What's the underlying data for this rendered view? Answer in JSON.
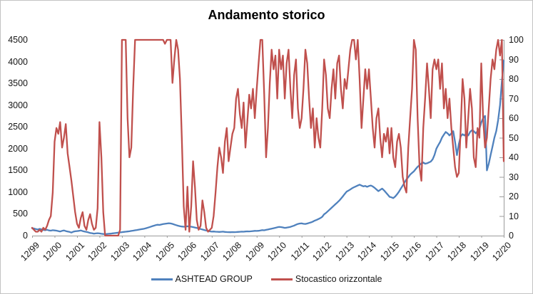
{
  "chart_data": {
    "type": "line",
    "title": "Andamento storico",
    "grid": false,
    "points_per_year": 12,
    "x_tick_labels": [
      "12/99",
      "12/00",
      "12/01",
      "12/02",
      "12/03",
      "12/04",
      "12/05",
      "12/06",
      "12/07",
      "12/08",
      "12/09",
      "12/10",
      "12/11",
      "12/12",
      "12/13",
      "12/14",
      "12/15",
      "12/16",
      "12/17",
      "12/18",
      "12/19",
      "12/20"
    ],
    "left_axis": {
      "min": 0,
      "max": 4500,
      "step": 500
    },
    "right_axis": {
      "min": 0,
      "max": 100,
      "step": 10
    },
    "legend": {
      "position": "bottom"
    },
    "series": [
      {
        "name": "ASHTEAD GROUP",
        "axis": "left",
        "color": "#4F81BD",
        "values": [
          170,
          165,
          150,
          140,
          155,
          145,
          130,
          125,
          135,
          120,
          115,
          125,
          120,
          115,
          105,
          95,
          110,
          120,
          105,
          95,
          85,
          70,
          90,
          100,
          105,
          110,
          120,
          105,
          95,
          85,
          75,
          60,
          55,
          45,
          50,
          55,
          50,
          42,
          38,
          35,
          38,
          42,
          46,
          52,
          58,
          62,
          68,
          74,
          80,
          85,
          90,
          95,
          100,
          108,
          115,
          122,
          130,
          138,
          145,
          152,
          160,
          172,
          185,
          200,
          215,
          228,
          240,
          250,
          245,
          255,
          265,
          272,
          278,
          285,
          280,
          270,
          255,
          240,
          228,
          218,
          210,
          205,
          208,
          214,
          210,
          205,
          196,
          186,
          176,
          165,
          152,
          140,
          130,
          118,
          108,
          98,
          92,
          95,
          90,
          88,
          85,
          88,
          92,
          85,
          82,
          80,
          78,
          82,
          80,
          82,
          85,
          88,
          92,
          90,
          95,
          98,
          96,
          100,
          105,
          110,
          108,
          112,
          118,
          126,
          122,
          132,
          140,
          150,
          160,
          170,
          180,
          192,
          200,
          196,
          188,
          178,
          184,
          192,
          202,
          216,
          230,
          250,
          268,
          278,
          282,
          272,
          268,
          278,
          292,
          305,
          322,
          345,
          362,
          382,
          402,
          432,
          490,
          520,
          560,
          600,
          640,
          680,
          720,
          760,
          800,
          850,
          900,
          955,
          1010,
          1035,
          1060,
          1090,
          1112,
          1132,
          1152,
          1172,
          1150,
          1132,
          1142,
          1122,
          1140,
          1152,
          1130,
          1100,
          1062,
          1022,
          1052,
          1082,
          1042,
          992,
          942,
          892,
          880,
          862,
          900,
          950,
          1010,
          1080,
          1150,
          1222,
          1292,
          1342,
          1402,
          1442,
          1480,
          1532,
          1582,
          1622,
          1662,
          1682,
          1652,
          1662,
          1682,
          1702,
          1752,
          1852,
          2000,
          2080,
          2152,
          2252,
          2322,
          2382,
          2352,
          2302,
          2352,
          2402,
          2150,
          1850,
          2100,
          2282,
          2332,
          2302,
          2352,
          2302,
          2382,
          2422,
          2402,
          2352,
          2402,
          2452,
          2600,
          2700,
          2752,
          1500,
          1652,
          1852,
          2052,
          2252,
          2402,
          2652,
          3002,
          3550,
          4020
        ]
      },
      {
        "name": "Stocastico orizzontale",
        "axis": "right",
        "color": "#C0504D",
        "values": [
          4,
          3,
          2,
          2,
          3,
          2,
          4,
          3,
          5,
          8,
          10,
          22,
          48,
          55,
          52,
          58,
          45,
          50,
          57,
          42,
          35,
          28,
          20,
          12,
          6,
          4,
          9,
          12,
          5,
          3,
          8,
          11,
          6,
          3,
          4,
          14,
          58,
          40,
          12,
          0,
          0,
          0,
          0,
          0,
          0,
          0,
          0,
          3,
          100,
          100,
          100,
          60,
          40,
          45,
          75,
          100,
          100,
          100,
          100,
          100,
          100,
          100,
          100,
          100,
          100,
          100,
          100,
          100,
          100,
          100,
          100,
          98,
          100,
          100,
          100,
          78,
          90,
          100,
          95,
          80,
          50,
          15,
          3,
          25,
          2,
          15,
          38,
          25,
          8,
          3,
          5,
          18,
          12,
          4,
          2,
          3,
          4,
          10,
          22,
          35,
          45,
          40,
          32,
          48,
          55,
          38,
          45,
          52,
          55,
          70,
          75,
          62,
          55,
          68,
          45,
          58,
          72,
          65,
          75,
          60,
          75,
          88,
          100,
          100,
          72,
          40,
          55,
          78,
          95,
          85,
          92,
          70,
          95,
          85,
          92,
          70,
          88,
          95,
          75,
          60,
          82,
          90,
          65,
          55,
          60,
          75,
          95,
          88,
          70,
          55,
          65,
          45,
          60,
          50,
          45,
          65,
          90,
          82,
          65,
          60,
          75,
          85,
          70,
          88,
          92,
          75,
          65,
          80,
          75,
          85,
          95,
          100,
          100,
          90,
          100,
          80,
          55,
          70,
          85,
          75,
          85,
          70,
          55,
          45,
          60,
          65,
          50,
          40,
          52,
          48,
          55,
          42,
          55,
          40,
          35,
          48,
          52,
          45,
          30,
          25,
          22,
          45,
          60,
          75,
          100,
          95,
          60,
          35,
          28,
          55,
          70,
          88,
          75,
          60,
          85,
          90,
          85,
          90,
          75,
          88,
          65,
          75,
          60,
          70,
          55,
          45,
          35,
          30,
          32,
          55,
          80,
          70,
          45,
          60,
          75,
          65,
          40,
          35,
          55,
          50,
          88,
          60,
          45,
          50,
          65,
          80,
          90,
          85,
          95,
          100,
          92,
          100,
          38
        ]
      }
    ]
  }
}
